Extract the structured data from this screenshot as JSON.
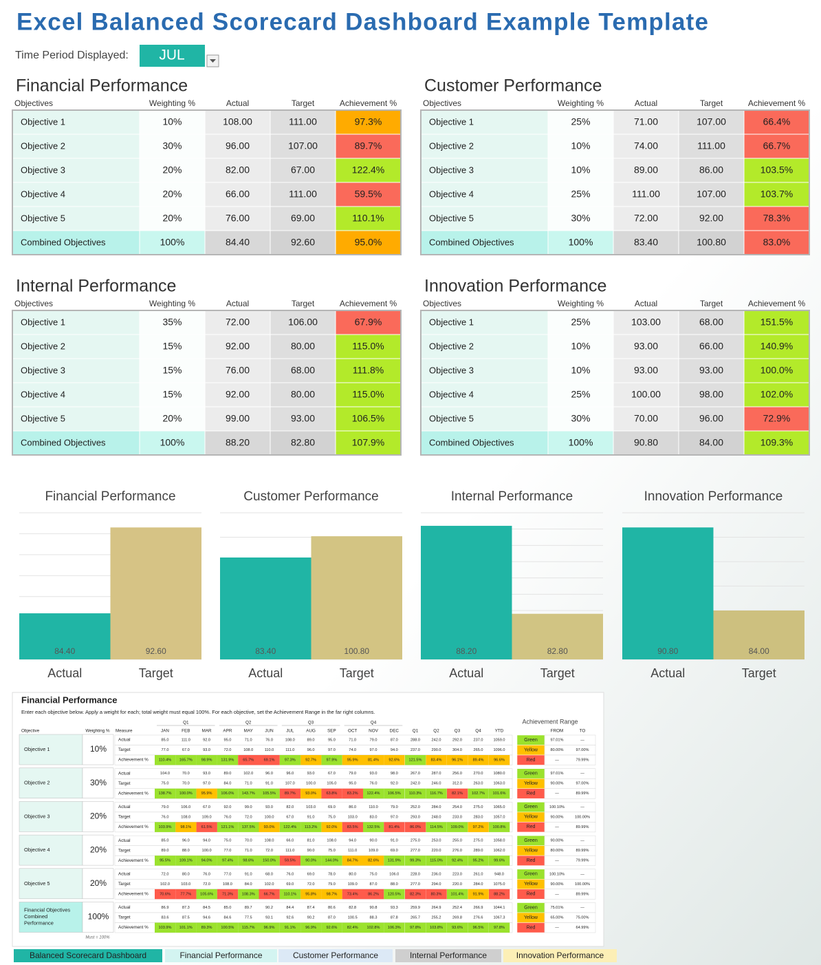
{
  "header": {
    "title": "Excel Balanced Scorecard Dashboard Example Template",
    "period_label": "Time Period Displayed:",
    "period": "JUL"
  },
  "tables": [
    {
      "title": "Financial Performance",
      "columns": [
        "Objectives",
        "Weighting %",
        "Actual",
        "Target",
        "Achievement %"
      ],
      "rows": [
        [
          "Objective 1",
          "10%",
          "108.00",
          "111.00",
          "97.3%"
        ],
        [
          "Objective 2",
          "30%",
          "96.00",
          "107.00",
          "89.7%"
        ],
        [
          "Objective 3",
          "20%",
          "82.00",
          "67.00",
          "122.4%"
        ],
        [
          "Objective 4",
          "20%",
          "66.00",
          "111.00",
          "59.5%"
        ],
        [
          "Objective 5",
          "20%",
          "76.00",
          "69.00",
          "110.1%"
        ],
        [
          "Combined Objectives",
          "100%",
          "84.40",
          "92.60",
          "95.0%"
        ]
      ],
      "colors": [
        "#ffab00",
        "#fa6a5a",
        "#b3ea2a",
        "#fa6a5a",
        "#b3ea2a",
        "#ffab00"
      ]
    },
    {
      "title": "Customer Performance",
      "columns": [
        "Objectives",
        "Weighting %",
        "Actual",
        "Target",
        "Achievement %"
      ],
      "rows": [
        [
          "Objective 1",
          "25%",
          "71.00",
          "107.00",
          "66.4%"
        ],
        [
          "Objective 2",
          "10%",
          "74.00",
          "111.00",
          "66.7%"
        ],
        [
          "Objective 3",
          "10%",
          "89.00",
          "86.00",
          "103.5%"
        ],
        [
          "Objective 4",
          "25%",
          "111.00",
          "107.00",
          "103.7%"
        ],
        [
          "Objective 5",
          "30%",
          "72.00",
          "92.00",
          "78.3%"
        ],
        [
          "Combined Objectives",
          "100%",
          "83.40",
          "100.80",
          "83.0%"
        ]
      ],
      "colors": [
        "#fa6a5a",
        "#fa6a5a",
        "#b3ea2a",
        "#b3ea2a",
        "#fa6a5a",
        "#fa6a5a"
      ]
    },
    {
      "title": "Internal Performance",
      "columns": [
        "Objectives",
        "Weighting %",
        "Actual",
        "Target",
        "Achievement %"
      ],
      "rows": [
        [
          "Objective 1",
          "35%",
          "72.00",
          "106.00",
          "67.9%"
        ],
        [
          "Objective 2",
          "15%",
          "92.00",
          "80.00",
          "115.0%"
        ],
        [
          "Objective 3",
          "15%",
          "76.00",
          "68.00",
          "111.8%"
        ],
        [
          "Objective 4",
          "15%",
          "92.00",
          "80.00",
          "115.0%"
        ],
        [
          "Objective 5",
          "20%",
          "99.00",
          "93.00",
          "106.5%"
        ],
        [
          "Combined Objectives",
          "100%",
          "88.20",
          "82.80",
          "107.9%"
        ]
      ],
      "colors": [
        "#fa6a5a",
        "#b3ea2a",
        "#b3ea2a",
        "#b3ea2a",
        "#b3ea2a",
        "#b3ea2a"
      ]
    },
    {
      "title": "Innovation Performance",
      "columns": [
        "Objectives",
        "Weighting %",
        "Actual",
        "Target",
        "Achievement %"
      ],
      "rows": [
        [
          "Objective 1",
          "25%",
          "103.00",
          "68.00",
          "151.5%"
        ],
        [
          "Objective 2",
          "10%",
          "93.00",
          "66.00",
          "140.9%"
        ],
        [
          "Objective 3",
          "10%",
          "93.00",
          "93.00",
          "100.0%"
        ],
        [
          "Objective 4",
          "25%",
          "100.00",
          "98.00",
          "102.0%"
        ],
        [
          "Objective 5",
          "30%",
          "70.00",
          "96.00",
          "72.9%"
        ],
        [
          "Combined Objectives",
          "100%",
          "90.80",
          "84.00",
          "109.3%"
        ]
      ],
      "colors": [
        "#b3ea2a",
        "#b3ea2a",
        "#b3ea2a",
        "#b3ea2a",
        "#fa6a5a",
        "#b3ea2a"
      ]
    }
  ],
  "chart_data": [
    {
      "type": "bar",
      "title": "Financial Performance",
      "categories": [
        "Actual",
        "Target"
      ],
      "values": [
        84.4,
        92.6
      ],
      "value_labels": [
        "84.40",
        "92.60"
      ],
      "colors": [
        "#20b5a5",
        "#d6c385"
      ],
      "ylim": [
        80,
        94
      ],
      "yticks": [
        80,
        82,
        84,
        86,
        88,
        90,
        92,
        94
      ],
      "grid": true
    },
    {
      "type": "bar",
      "title": "Customer Performance",
      "categories": [
        "Actual",
        "Target"
      ],
      "values": [
        83.4,
        100.8
      ],
      "value_labels": [
        "83.40",
        "100.80"
      ],
      "colors": [
        "#20b5a5",
        "#d3c483"
      ],
      "ylim": [
        0,
        120
      ],
      "yticks": [
        0,
        20,
        40,
        60,
        80,
        100,
        120
      ],
      "grid": true
    },
    {
      "type": "bar",
      "title": "Internal Performance",
      "categories": [
        "Actual",
        "Target"
      ],
      "values": [
        88.2,
        82.8
      ],
      "value_labels": [
        "88.20",
        "82.80"
      ],
      "colors": [
        "#20b5a5",
        "#d1c483"
      ],
      "ylim": [
        80,
        89
      ],
      "yticks": [
        80,
        81,
        82,
        83,
        84,
        85,
        86,
        87,
        88,
        89
      ],
      "grid": true
    },
    {
      "type": "bar",
      "title": "Innovation Performance",
      "categories": [
        "Actual",
        "Target"
      ],
      "values": [
        90.8,
        84
      ],
      "value_labels": [
        "90.80",
        "84.00"
      ],
      "colors": [
        "#20b5a5",
        "#cdc07f"
      ],
      "ylim": [
        80,
        92
      ],
      "yticks": [
        80,
        82,
        84,
        86,
        88,
        90,
        92
      ],
      "grid": true
    }
  ],
  "preview": {
    "title": "Financial Performance",
    "instructions": "Enter each objective below.  Apply a weight for each; total weight must equal 100%.  For each objective, set the Achievement Range in the far right columns.",
    "objective_header": "Objective",
    "weight_header": "Weighting %",
    "measure_header": "Measure",
    "quarters": [
      "Q1",
      "Q2",
      "Q3",
      "Q4"
    ],
    "months": [
      "JAN",
      "FEB",
      "MAR",
      "APR",
      "MAY",
      "JUN",
      "JUL",
      "AUG",
      "SEP",
      "OCT",
      "NOV",
      "DEC"
    ],
    "totals": [
      "Q1",
      "Q2",
      "Q3",
      "Q4",
      "YTD"
    ],
    "range_title": "Achievement Range",
    "range_headers": [
      "FROM",
      "TO"
    ],
    "status_colors": [
      "#9be22d",
      "#ffc000",
      "#ff5b4b"
    ],
    "note": "Must = 100%",
    "blocks": [
      {
        "objective": "Objective 1",
        "weight": "10%",
        "rows": [
          {
            "measure": "Actual",
            "values": [
              "85.0",
              "111.0",
              "92.0",
              "95.0",
              "71.0",
              "76.0",
              "108.0",
              "89.0",
              "95.0",
              "71.0",
              "79.0",
              "87.0",
              "288.0",
              "242.0",
              "292.0",
              "237.0",
              "1059.0"
            ]
          },
          {
            "measure": "Target",
            "values": [
              "77.0",
              "67.0",
              "93.0",
              "72.0",
              "108.0",
              "110.0",
              "111.0",
              "96.0",
              "97.0",
              "74.0",
              "97.0",
              "94.0",
              "237.0",
              "290.0",
              "304.0",
              "265.0",
              "1096.0"
            ]
          },
          {
            "measure": "Achievement %",
            "values": [
              "110.4%",
              "165.7%",
              "98.9%",
              "131.9%",
              "65.7%",
              "69.1%",
              "97.3%",
              "92.7%",
              "97.9%",
              "95.9%",
              "81.4%",
              "92.6%",
              "121.5%",
              "83.4%",
              "96.1%",
              "89.4%",
              "96.6%"
            ]
          }
        ],
        "range": [
          [
            "Green",
            "97.01%",
            "—"
          ],
          [
            "Yellow",
            "80.00%",
            "97.00%"
          ],
          [
            "Red",
            "—",
            "79.99%"
          ]
        ]
      },
      {
        "objective": "Objective 2",
        "weight": "30%",
        "rows": [
          {
            "measure": "Actual",
            "values": [
              "104.0",
              "70.0",
              "93.0",
              "89.0",
              "102.0",
              "96.0",
              "96.0",
              "93.0",
              "67.0",
              "79.0",
              "93.0",
              "98.0",
              "267.0",
              "287.0",
              "256.0",
              "270.0",
              "1080.0"
            ]
          },
          {
            "measure": "Target",
            "values": [
              "75.0",
              "70.0",
              "97.0",
              "84.0",
              "71.0",
              "91.0",
              "107.0",
              "100.0",
              "105.0",
              "95.0",
              "76.0",
              "92.0",
              "242.0",
              "246.0",
              "312.0",
              "263.0",
              "1063.0"
            ]
          },
          {
            "measure": "Achievement %",
            "values": [
              "138.7%",
              "100.0%",
              "95.9%",
              "106.0%",
              "143.7%",
              "105.5%",
              "89.7%",
              "93.0%",
              "63.8%",
              "83.2%",
              "122.4%",
              "106.5%",
              "110.3%",
              "116.7%",
              "82.1%",
              "102.7%",
              "101.6%"
            ]
          }
        ],
        "range": [
          [
            "Green",
            "97.01%",
            "—"
          ],
          [
            "Yellow",
            "90.00%",
            "97.00%"
          ],
          [
            "Red",
            "—",
            "89.99%"
          ]
        ]
      },
      {
        "objective": "Objective 3",
        "weight": "20%",
        "rows": [
          {
            "measure": "Actual",
            "values": [
              "79.0",
              "106.0",
              "67.0",
              "92.0",
              "99.0",
              "93.0",
              "82.0",
              "103.0",
              "69.0",
              "86.0",
              "110.0",
              "79.0",
              "252.0",
              "284.0",
              "254.0",
              "275.0",
              "1065.0"
            ]
          },
          {
            "measure": "Target",
            "values": [
              "76.0",
              "108.0",
              "109.0",
              "76.0",
              "72.0",
              "100.0",
              "67.0",
              "91.0",
              "75.0",
              "103.0",
              "83.0",
              "97.0",
              "293.0",
              "248.0",
              "233.0",
              "283.0",
              "1057.0"
            ]
          },
          {
            "measure": "Achievement %",
            "values": [
              "103.9%",
              "98.1%",
              "61.5%",
              "121.1%",
              "137.5%",
              "93.0%",
              "122.4%",
              "113.2%",
              "92.0%",
              "83.5%",
              "132.5%",
              "81.4%",
              "86.0%",
              "114.5%",
              "109.0%",
              "97.2%",
              "100.8%"
            ]
          }
        ],
        "range": [
          [
            "Green",
            "100.10%",
            "—"
          ],
          [
            "Yellow",
            "90.00%",
            "100.00%"
          ],
          [
            "Red",
            "—",
            "89.99%"
          ]
        ]
      },
      {
        "objective": "Objective 4",
        "weight": "20%",
        "rows": [
          {
            "measure": "Actual",
            "values": [
              "85.0",
              "96.0",
              "94.0",
              "75.0",
              "70.0",
              "108.0",
              "66.0",
              "81.0",
              "108.0",
              "94.0",
              "90.0",
              "91.0",
              "275.0",
              "253.0",
              "255.0",
              "275.0",
              "1058.0"
            ]
          },
          {
            "measure": "Target",
            "values": [
              "89.0",
              "88.0",
              "100.0",
              "77.0",
              "71.0",
              "72.0",
              "111.0",
              "90.0",
              "75.0",
              "111.0",
              "109.0",
              "69.0",
              "277.0",
              "220.0",
              "276.0",
              "289.0",
              "1062.0"
            ]
          },
          {
            "measure": "Achievement %",
            "values": [
              "95.5%",
              "109.1%",
              "94.0%",
              "97.4%",
              "98.6%",
              "150.0%",
              "59.5%",
              "90.0%",
              "144.0%",
              "84.7%",
              "82.6%",
              "131.9%",
              "99.3%",
              "115.0%",
              "92.4%",
              "95.2%",
              "99.6%"
            ]
          }
        ],
        "range": [
          [
            "Green",
            "90.00%",
            "—"
          ],
          [
            "Yellow",
            "80.00%",
            "89.99%"
          ],
          [
            "Red",
            "—",
            "79.99%"
          ]
        ]
      },
      {
        "objective": "Objective 5",
        "weight": "20%",
        "rows": [
          {
            "measure": "Actual",
            "values": [
              "72.0",
              "80.0",
              "76.0",
              "77.0",
              "91.0",
              "68.0",
              "76.0",
              "69.0",
              "78.0",
              "80.0",
              "75.0",
              "106.0",
              "228.0",
              "236.0",
              "223.0",
              "261.0",
              "948.0"
            ]
          },
          {
            "measure": "Target",
            "values": [
              "102.0",
              "103.0",
              "72.0",
              "108.0",
              "84.0",
              "102.0",
              "69.0",
              "72.0",
              "79.0",
              "109.0",
              "87.0",
              "88.0",
              "277.0",
              "294.0",
              "220.0",
              "284.0",
              "1075.0"
            ]
          },
          {
            "measure": "Achievement %",
            "values": [
              "70.6%",
              "77.7%",
              "105.6%",
              "71.3%",
              "108.3%",
              "66.7%",
              "110.1%",
              "95.8%",
              "98.7%",
              "73.4%",
              "86.2%",
              "120.5%",
              "82.3%",
              "80.3%",
              "101.4%",
              "91.9%",
              "88.2%"
            ]
          }
        ],
        "range": [
          [
            "Green",
            "100.10%",
            "—"
          ],
          [
            "Yellow",
            "90.00%",
            "100.00%"
          ],
          [
            "Red",
            "—",
            "89.99%"
          ]
        ]
      },
      {
        "objective": "Financial Objectives Combined Performance",
        "weight": "100%",
        "rows": [
          {
            "measure": "Actual",
            "values": [
              "86.9",
              "87.3",
              "84.5",
              "85.0",
              "89.7",
              "90.2",
              "84.4",
              "87.4",
              "80.6",
              "82.8",
              "90.8",
              "93.3",
              "259.9",
              "264.9",
              "252.4",
              "266.9",
              "1044.1"
            ]
          },
          {
            "measure": "Target",
            "values": [
              "83.6",
              "87.5",
              "94.6",
              "84.6",
              "77.5",
              "93.1",
              "92.6",
              "90.2",
              "87.0",
              "100.5",
              "88.3",
              "87.8",
              "265.7",
              "255.2",
              "269.8",
              "276.6",
              "1067.3"
            ]
          },
          {
            "measure": "Achievement %",
            "values": [
              "103.9%",
              "101.1%",
              "89.3%",
              "100.5%",
              "115.7%",
              "96.9%",
              "91.1%",
              "96.9%",
              "92.6%",
              "82.4%",
              "102.8%",
              "106.3%",
              "97.8%",
              "103.8%",
              "93.6%",
              "96.5%",
              "97.8%"
            ]
          }
        ],
        "range": [
          [
            "Green",
            "75.01%",
            "—"
          ],
          [
            "Yellow",
            "65.00%",
            "75.00%"
          ],
          [
            "Red",
            "—",
            "64.99%"
          ]
        ]
      }
    ]
  },
  "tabs": [
    {
      "label": "Balanced Scorecard Dashboard",
      "color": "#20b5a5"
    },
    {
      "label": "Financial Performance",
      "color": "#d3f4f1"
    },
    {
      "label": "Customer Performance",
      "color": "#dce9f6"
    },
    {
      "label": "Internal Performance",
      "color": "#cfcfcf"
    },
    {
      "label": "Innovation Performance",
      "color": "#fcefb6"
    }
  ]
}
